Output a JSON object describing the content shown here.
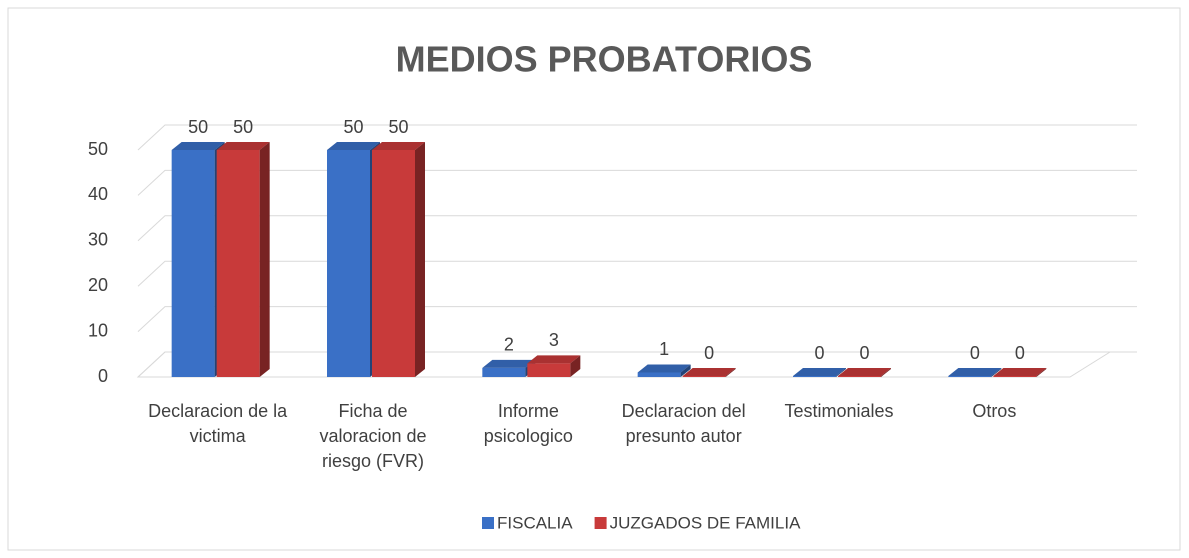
{
  "chart_data": {
    "type": "bar3d",
    "title": "MEDIOS PROBATORIOS",
    "categories": [
      "Declaracion de la victima",
      "Ficha de valoracion de riesgo (FVR)",
      "Informe psicologico",
      "Declaracion del presunto autor",
      "Testimoniales",
      "Otros"
    ],
    "series": [
      {
        "name": "FISCALIA",
        "color": "#3a70c6",
        "values": [
          50,
          50,
          2,
          1,
          0,
          0
        ]
      },
      {
        "name": "JUZGADOS DE FAMILIA",
        "color": "#c83a3a",
        "values": [
          50,
          50,
          3,
          0,
          0,
          0
        ]
      }
    ],
    "ylim": [
      0,
      50
    ],
    "yticks": [
      0,
      10,
      20,
      30,
      40,
      50
    ],
    "grid": true,
    "legend": "bottom"
  }
}
